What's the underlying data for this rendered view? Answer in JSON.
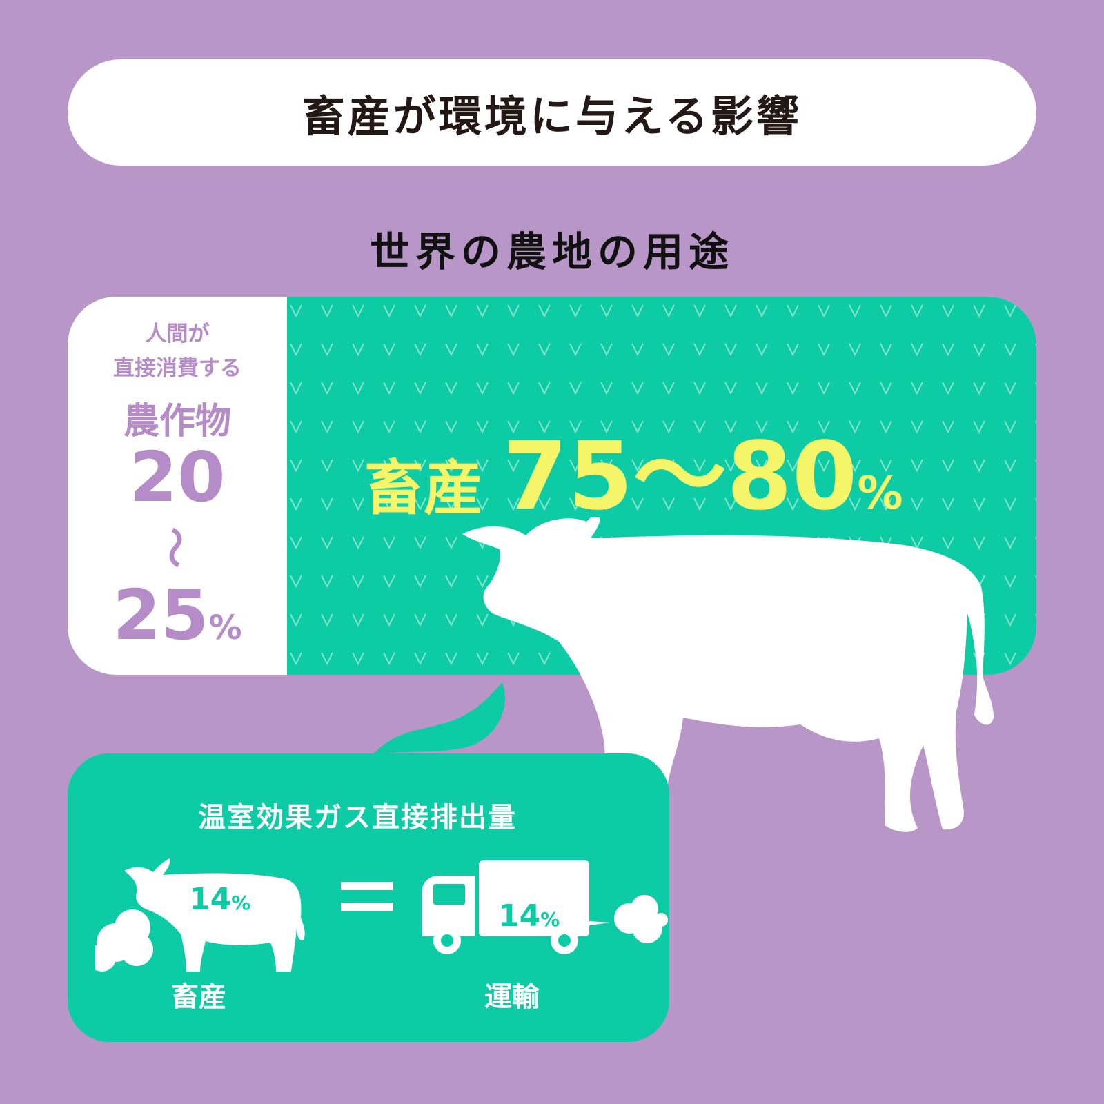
{
  "title": "畜産が環境に与える影響",
  "subtitle": "世界の農地の用途",
  "human_crops": {
    "line1": "人間が",
    "line2": "直接消費する",
    "label": "農作物",
    "low": "20",
    "tilde": "〜",
    "high": "25",
    "percent_sign": "%"
  },
  "livestock_land": {
    "label": "畜産",
    "range": "75〜80",
    "percent_sign": "%"
  },
  "ghg": {
    "title": "温室効果ガス直接排出量",
    "livestock_value": "14",
    "livestock_percent_sign": "%",
    "livestock_label": "畜産",
    "transport_value": "14",
    "transport_percent_sign": "%",
    "transport_label": "運輸"
  },
  "colors": {
    "background": "#b896c8",
    "green": "#0dcca5",
    "yellow": "#f5f56a",
    "purple_text": "#b58cc8",
    "white": "#ffffff"
  },
  "icons": [
    "cow-silhouette-icon",
    "exhaust-puff-icon",
    "cloud-icon",
    "equals-icon",
    "truck-icon"
  ]
}
